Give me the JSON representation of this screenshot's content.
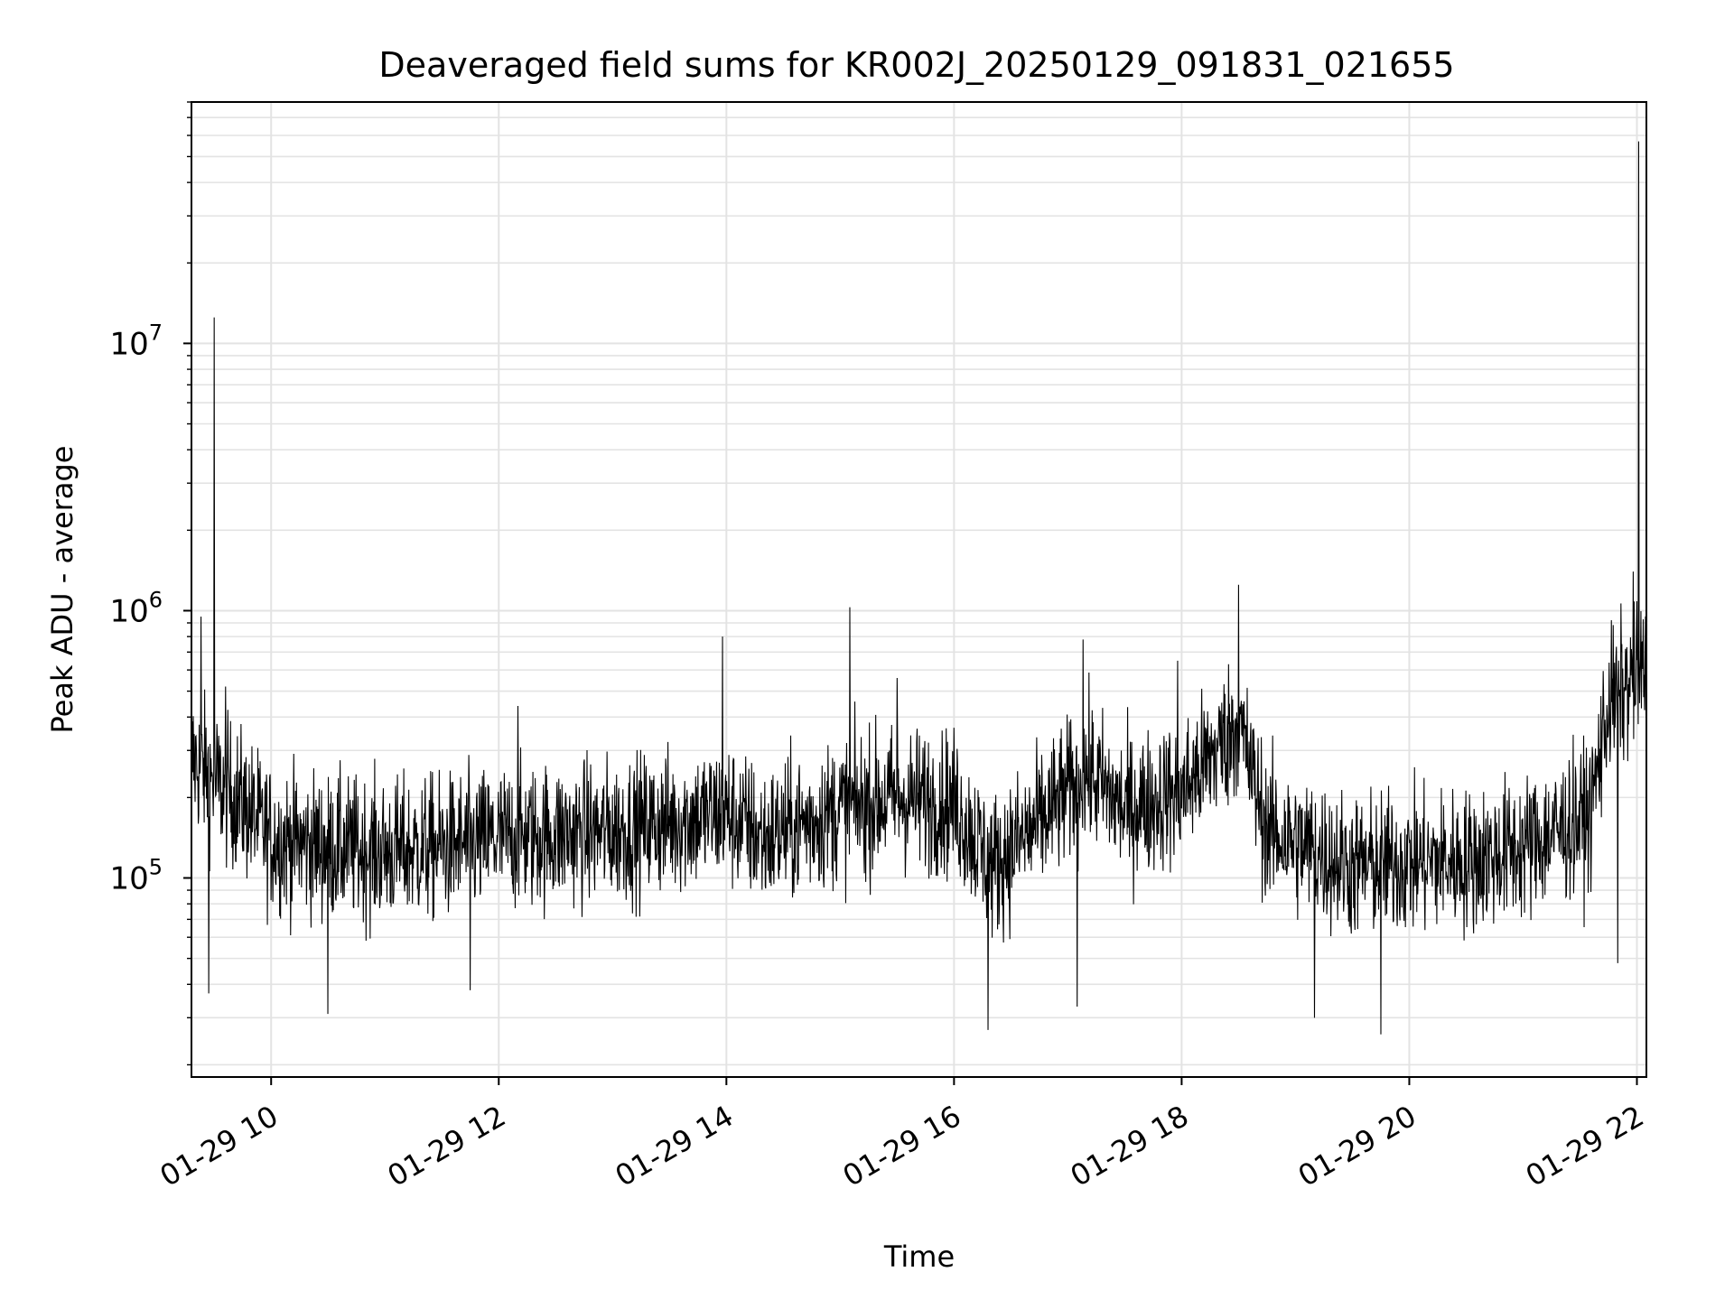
{
  "chart_data": {
    "type": "line",
    "title": "Deaveraged field sums for KR002J_20250129_091831_021655",
    "xlabel": "Time",
    "ylabel": "Peak ADU - average",
    "yscale": "log",
    "xlim": [
      "01-29 09:18",
      "01-29 22:05"
    ],
    "ylim": [
      18000,
      80000000
    ],
    "grid": true,
    "line_color": "#000000",
    "x_ticks": [
      "01-29 10",
      "01-29 12",
      "01-29 14",
      "01-29 16",
      "01-29 18",
      "01-29 20",
      "01-29 22"
    ],
    "y_ticks": [
      {
        "base": "10",
        "exp": "5",
        "value": 100000
      },
      {
        "base": "10",
        "exp": "6",
        "value": 1000000
      },
      {
        "base": "10",
        "exp": "7",
        "value": 10000000
      }
    ],
    "series": [
      {
        "baseline": [
          {
            "x": "01-29 09:18",
            "y": 280000
          },
          {
            "x": "01-29 09:30",
            "y": 230000
          },
          {
            "x": "01-29 09:45",
            "y": 190000
          },
          {
            "x": "01-29 10:00",
            "y": 140000
          },
          {
            "x": "01-29 10:30",
            "y": 130000
          },
          {
            "x": "01-29 11:00",
            "y": 125000
          },
          {
            "x": "01-29 11:30",
            "y": 130000
          },
          {
            "x": "01-29 12:00",
            "y": 140000
          },
          {
            "x": "01-29 13:00",
            "y": 150000
          },
          {
            "x": "01-29 14:00",
            "y": 175000
          },
          {
            "x": "01-29 14:20",
            "y": 140000
          },
          {
            "x": "01-29 15:00",
            "y": 180000
          },
          {
            "x": "01-29 15:30",
            "y": 200000
          },
          {
            "x": "01-29 16:00",
            "y": 190000
          },
          {
            "x": "01-29 16:20",
            "y": 110000
          },
          {
            "x": "01-29 16:45",
            "y": 160000
          },
          {
            "x": "01-29 17:10",
            "y": 250000
          },
          {
            "x": "01-29 17:30",
            "y": 180000
          },
          {
            "x": "01-29 18:00",
            "y": 210000
          },
          {
            "x": "01-29 18:30",
            "y": 380000
          },
          {
            "x": "01-29 18:45",
            "y": 150000
          },
          {
            "x": "01-29 19:30",
            "y": 110000
          },
          {
            "x": "01-29 20:00",
            "y": 115000
          },
          {
            "x": "01-29 20:30",
            "y": 115000
          },
          {
            "x": "01-29 21:00",
            "y": 130000
          },
          {
            "x": "01-29 21:35",
            "y": 170000
          },
          {
            "x": "01-29 21:45",
            "y": 450000
          },
          {
            "x": "01-29 22:05",
            "y": 600000
          }
        ],
        "spikes": [
          {
            "x": "01-29 09:23",
            "y": 950000
          },
          {
            "x": "01-29 09:27",
            "y": 37000
          },
          {
            "x": "01-29 09:30",
            "y": 12500000
          },
          {
            "x": "01-29 09:36",
            "y": 520000
          },
          {
            "x": "01-29 10:30",
            "y": 31000
          },
          {
            "x": "01-29 11:45",
            "y": 38000
          },
          {
            "x": "01-29 12:10",
            "y": 440000
          },
          {
            "x": "01-29 13:58",
            "y": 800000
          },
          {
            "x": "01-29 15:05",
            "y": 1030000
          },
          {
            "x": "01-29 15:30",
            "y": 560000
          },
          {
            "x": "01-29 16:18",
            "y": 27000
          },
          {
            "x": "01-29 17:05",
            "y": 33000
          },
          {
            "x": "01-29 17:08",
            "y": 780000
          },
          {
            "x": "01-29 17:58",
            "y": 650000
          },
          {
            "x": "01-29 18:30",
            "y": 1250000
          },
          {
            "x": "01-29 19:10",
            "y": 30000
          },
          {
            "x": "01-29 19:45",
            "y": 26000
          },
          {
            "x": "01-29 21:50",
            "y": 48000
          },
          {
            "x": "01-29 21:58",
            "y": 1400000
          },
          {
            "x": "01-29 22:01",
            "y": 57000000
          }
        ]
      }
    ]
  }
}
